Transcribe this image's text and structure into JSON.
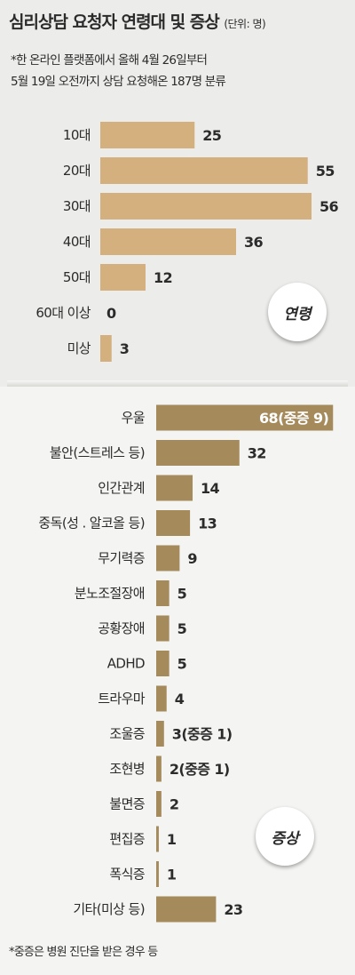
{
  "header": {
    "title": "심리상담 요청자 연령대 및 증상",
    "unit": "(단위: 명)",
    "note_line1": "*한 온라인 플랫폼에서 올해 4월 26일부터",
    "note_line2": "5월 19일 오전까지 상담 요청해온 187명 분류"
  },
  "badges": {
    "age": "연령",
    "symptom": "증상"
  },
  "footnote": "*중증은 병원 진단을 받은 경우 등",
  "colors": {
    "age_bar": "#d4b07e",
    "symptom_bar": "#a58a5c",
    "text": "#2b2b2b"
  },
  "chart_data": [
    {
      "type": "bar",
      "orientation": "horizontal",
      "title": "연령",
      "categories": [
        "10대",
        "20대",
        "30대",
        "40대",
        "50대",
        "60대 이상",
        "미상"
      ],
      "values": [
        25,
        55,
        56,
        36,
        12,
        0,
        3
      ],
      "value_labels": [
        "25",
        "55",
        "56",
        "36",
        "12",
        "0",
        "3"
      ]
    },
    {
      "type": "bar",
      "orientation": "horizontal",
      "title": "증상",
      "categories": [
        "우울",
        "불안(스트레스 등)",
        "인간관계",
        "중독(성 . 알코올 등)",
        "무기력증",
        "분노조절장애",
        "공황장애",
        "ADHD",
        "트라우마",
        "조울증",
        "조현병",
        "불면증",
        "편집증",
        "폭식증",
        "기타(미상 등)"
      ],
      "values": [
        68,
        32,
        14,
        13,
        9,
        5,
        5,
        5,
        4,
        3,
        2,
        2,
        1,
        1,
        23
      ],
      "value_labels": [
        "68(중증 9)",
        "32",
        "14",
        "13",
        "9",
        "5",
        "5",
        "5",
        "4",
        "3(중증 1)",
        "2(중증 1)",
        "2",
        "1",
        "1",
        "23"
      ]
    }
  ]
}
